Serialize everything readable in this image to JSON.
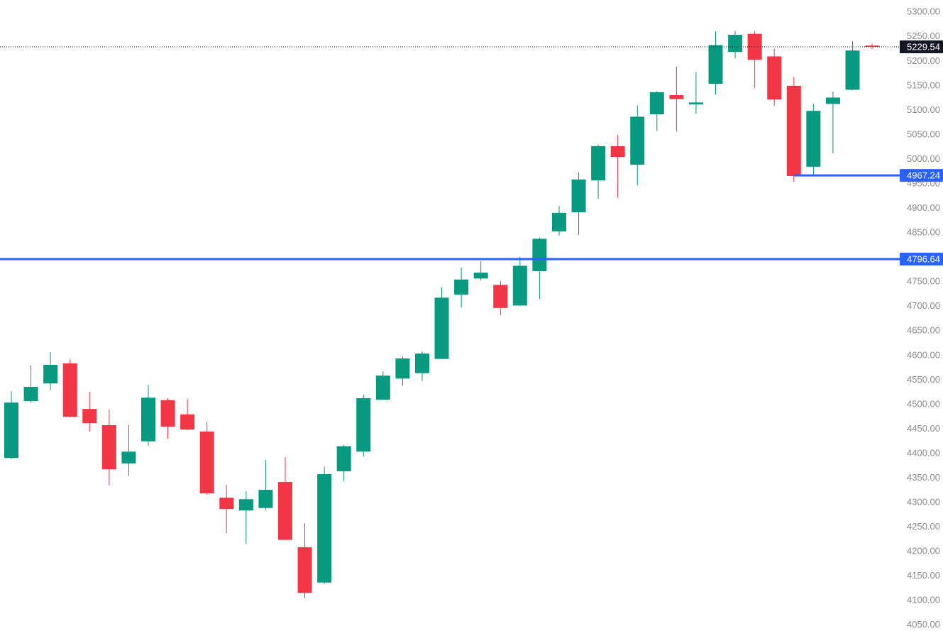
{
  "chart_data": {
    "type": "candlestick",
    "open": [
      4391,
      4507,
      4543,
      4584,
      4491,
      4458,
      4380,
      4425,
      4509,
      4480,
      4445,
      4310,
      4284,
      4289,
      4342,
      4209,
      4137,
      4364,
      4404,
      4510,
      4553,
      4564,
      4593,
      4724,
      4757,
      4744,
      4702,
      4772,
      4853,
      4892,
      4957,
      5027,
      4989,
      5092,
      5131,
      5112,
      5154,
      5219,
      5256,
      5210,
      5150,
      4985,
      5113,
      5142,
      5232
    ],
    "high": [
      4527,
      4580,
      4607,
      4592,
      4526,
      4490,
      4458,
      4540,
      4513,
      4511,
      4465,
      4336,
      4323,
      4386,
      4393,
      4258,
      4373,
      4418,
      4520,
      4568,
      4598,
      4608,
      4739,
      4779,
      4792,
      4752,
      4801,
      4841,
      4905,
      4974,
      5030,
      5050,
      5110,
      5139,
      5189,
      5178,
      5261,
      5262,
      5262,
      5226,
      5168,
      5113,
      5138,
      5241,
      5236
    ],
    "low": [
      4389,
      4504,
      4529,
      4474,
      4445,
      4335,
      4355,
      4416,
      4430,
      4448,
      4316,
      4238,
      4216,
      4286,
      4224,
      4105,
      4134,
      4344,
      4394,
      4510,
      4538,
      4548,
      4593,
      4698,
      4753,
      4682,
      4701,
      4715,
      4844,
      4846,
      4920,
      4922,
      4947,
      5058,
      5057,
      5093,
      5132,
      5206,
      5145,
      5109,
      4954,
      4967,
      5012,
      5141,
      5225
    ],
    "close": [
      4504,
      4536,
      4581,
      4475,
      4462,
      4368,
      4404,
      4514,
      4455,
      4449,
      4319,
      4287,
      4307,
      4326,
      4224,
      4116,
      4358,
      4415,
      4513,
      4559,
      4594,
      4604,
      4718,
      4755,
      4769,
      4697,
      4783,
      4838,
      4891,
      4959,
      5027,
      5005,
      5087,
      5137,
      5123,
      5116,
      5233,
      5254,
      5203,
      5122,
      4966,
      5099,
      5126,
      5222,
      5229.54
    ],
    "up_color": "#089981",
    "down_color": "#f23645",
    "ylim": [
      4028,
      5325
    ],
    "yticks": [
      {
        "value": 4050,
        "label": "4050.00"
      },
      {
        "value": 4100,
        "label": "4100.00"
      },
      {
        "value": 4150,
        "label": "4150.00"
      },
      {
        "value": 4200,
        "label": "4200.00"
      },
      {
        "value": 4250,
        "label": "4250.00"
      },
      {
        "value": 4300,
        "label": "4300.00"
      },
      {
        "value": 4350,
        "label": "4350.00"
      },
      {
        "value": 4400,
        "label": "4400.00"
      },
      {
        "value": 4450,
        "label": "4450.00"
      },
      {
        "value": 4500,
        "label": "4500.00"
      },
      {
        "value": 4550,
        "label": "4550.00"
      },
      {
        "value": 4600,
        "label": "4600.00"
      },
      {
        "value": 4650,
        "label": "4650.00"
      },
      {
        "value": 4700,
        "label": "4700.00"
      },
      {
        "value": 4750,
        "label": "4750.00"
      },
      {
        "value": 4800,
        "label": "4800.00"
      },
      {
        "value": 4850,
        "label": "4850.00"
      },
      {
        "value": 4900,
        "label": "4900.00"
      },
      {
        "value": 4950,
        "label": "4950.00"
      },
      {
        "value": 5000,
        "label": "5000.00"
      },
      {
        "value": 5050,
        "label": "5050.00"
      },
      {
        "value": 5100,
        "label": "5100.00"
      },
      {
        "value": 5150,
        "label": "5150.00"
      },
      {
        "value": 5200,
        "label": "5200.00"
      },
      {
        "value": 5250,
        "label": "5250.00"
      },
      {
        "value": 5300,
        "label": "5300.00"
      }
    ],
    "price_lines": [
      {
        "value": 5229.54,
        "color": "#131722",
        "style": "dotted"
      },
      {
        "value": 4967.24,
        "color": "#2962ff",
        "style": "solid"
      },
      {
        "value": 4796.64,
        "color": "#2962ff",
        "style": "solid"
      }
    ]
  }
}
